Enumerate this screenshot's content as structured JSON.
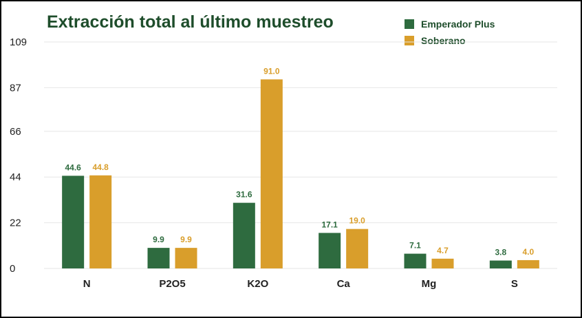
{
  "chart_data": {
    "type": "bar",
    "title": "Extracción total al último muestreo",
    "categories": [
      "N",
      "P2O5",
      "K2O",
      "Ca",
      "Mg",
      "S"
    ],
    "series": [
      {
        "name": "Emperador Plus",
        "color": "#2e6b3f",
        "values": [
          44.6,
          9.9,
          31.6,
          17.1,
          7.1,
          3.8
        ],
        "labels": [
          "44.6",
          "9.9",
          "31.6",
          "17.1",
          "7.1",
          "3.8"
        ]
      },
      {
        "name": "Soberano",
        "color": "#d99e2b",
        "values": [
          44.8,
          9.9,
          91.0,
          19.0,
          4.7,
          4.0
        ],
        "labels": [
          "44.8",
          "9.9",
          "91.0",
          "19.0",
          "4.7",
          "4.0"
        ]
      }
    ],
    "yticks": [
      "0",
      "22",
      "44",
      "66",
      "87",
      "109"
    ],
    "ylim": [
      0,
      109
    ],
    "grid": true,
    "legend_position": "top-right"
  },
  "colors": {
    "title": "#1e4d2b",
    "grid": "#e6e6e6",
    "axis_text": "#222222"
  }
}
